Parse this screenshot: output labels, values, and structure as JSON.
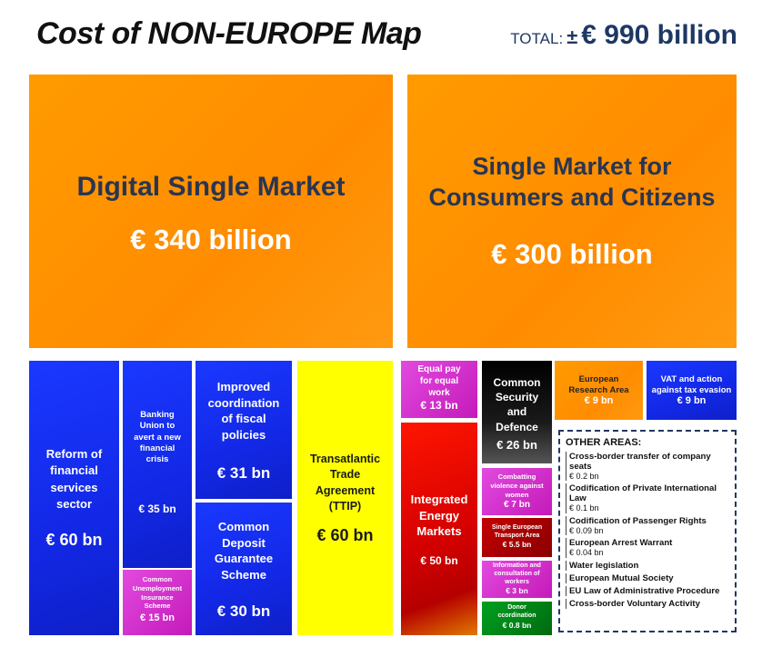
{
  "title": "Cost of NON-EUROPE Map",
  "total": {
    "label": "TOTAL:",
    "prefix": "±",
    "value": "€ 990 billion"
  },
  "colors": {
    "orange": "#ff9200",
    "blue": "#1a30f0",
    "yellow": "#ffff00",
    "magenta": "#d22fd0",
    "red": "#d40000",
    "black": "#000000",
    "green": "#008a18",
    "navy_text": "#1e3864"
  },
  "chart_data": {
    "type": "treemap",
    "title": "Cost of NON-EUROPE Map",
    "total": "± € 990 billion",
    "unit": "€ billion",
    "items": [
      {
        "id": "digital",
        "name": "Digital Single Market",
        "label": "€ 340 billion",
        "value": 340,
        "color": "orange"
      },
      {
        "id": "single_market",
        "name": "Single Market for Consumers and Citizens",
        "label": "€ 300 billion",
        "value": 300,
        "color": "orange"
      },
      {
        "id": "financial",
        "name": "Reform of financial services sector",
        "label": "€ 60 bn",
        "value": 60,
        "color": "blue"
      },
      {
        "id": "banking",
        "name": "Banking Union to avert a new financial crisis",
        "label": "€ 35 bn",
        "value": 35,
        "color": "blue"
      },
      {
        "id": "unemployment",
        "name": "Common Unemployment Insurance Scheme",
        "label": "€ 15 bn",
        "value": 15,
        "color": "magenta"
      },
      {
        "id": "fiscal",
        "name": "Improved coordination of fiscal policies",
        "label": "€ 31 bn",
        "value": 31,
        "color": "blue"
      },
      {
        "id": "deposit",
        "name": "Common Deposit Guarantee Scheme",
        "label": "€ 30 bn",
        "value": 30,
        "color": "blue"
      },
      {
        "id": "ttip",
        "name": "Transatlantic Trade Agreement (TTIP)",
        "label": "€ 60 bn",
        "value": 60,
        "color": "yellow"
      },
      {
        "id": "equal_pay",
        "name": "Equal pay for equal work",
        "label": "€ 13 bn",
        "value": 13,
        "color": "magenta"
      },
      {
        "id": "energy",
        "name": "Integrated Energy Markets",
        "label": "€ 50 bn",
        "value": 50,
        "color": "red"
      },
      {
        "id": "security",
        "name": "Common Security and Defence",
        "label": "€ 26 bn",
        "value": 26,
        "color": "black"
      },
      {
        "id": "violence",
        "name": "Combatting violence against women",
        "label": "€ 7 bn",
        "value": 7,
        "color": "magenta"
      },
      {
        "id": "transport",
        "name": "Single European Transport Area",
        "label": "€ 5.5 bn",
        "value": 5.5,
        "color": "darkred"
      },
      {
        "id": "workers",
        "name": "Information and consultation of workers",
        "label": "€ 3 bn",
        "value": 3,
        "color": "magenta"
      },
      {
        "id": "donor",
        "name": "Donor ccordination",
        "label": "€ 0.8 bn",
        "value": 0.8,
        "color": "green"
      },
      {
        "id": "research",
        "name": "European Research Area",
        "label": "€ 9 bn",
        "value": 9,
        "color": "orange"
      },
      {
        "id": "vat",
        "name": "VAT and action against tax evasion",
        "label": "€ 9 bn",
        "value": 9,
        "color": "blue"
      }
    ],
    "other_areas": {
      "heading": "OTHER AREAS:",
      "items": [
        {
          "name": "Cross-border transfer of company seats",
          "value": "€ 0.2 bn"
        },
        {
          "name": "Codification of Private International Law",
          "value": "€ 0.1 bn"
        },
        {
          "name": "Codification of Passenger Rights",
          "value": "€ 0.09 bn"
        },
        {
          "name": "European Arrest Warrant",
          "value": "€ 0.04 bn"
        },
        {
          "name": "Water legislation",
          "value": ""
        },
        {
          "name": "European Mutual Society",
          "value": ""
        },
        {
          "name": "EU Law of  Administrative Procedure",
          "value": ""
        },
        {
          "name": "Cross-border Voluntary Activity",
          "value": ""
        }
      ]
    }
  }
}
